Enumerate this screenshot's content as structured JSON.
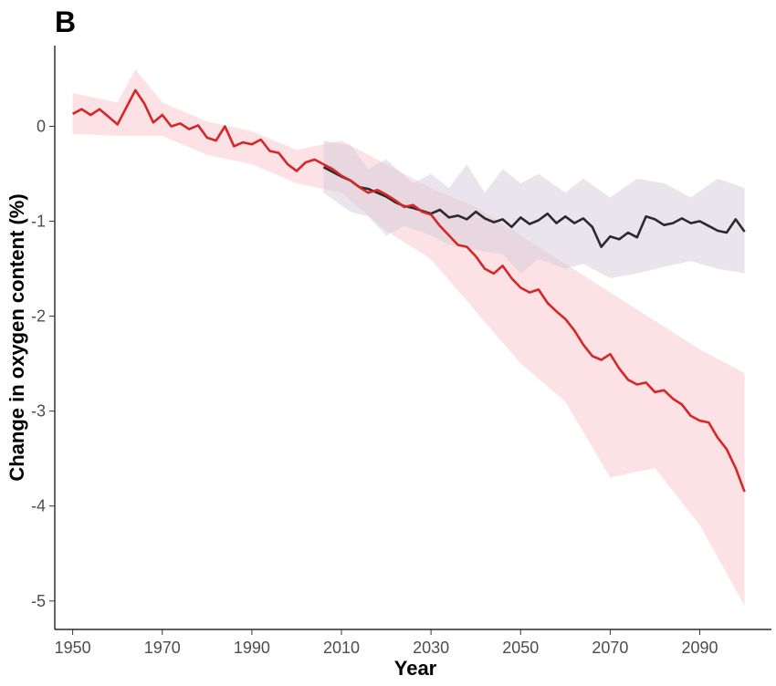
{
  "panel_label": "B",
  "chart_data": {
    "type": "line",
    "title": "",
    "xlabel": "Year",
    "ylabel": "Change in oxygen content (%)",
    "xlim": [
      1946,
      2106
    ],
    "ylim": [
      -5.3,
      0.85
    ],
    "xticks": [
      1950,
      1970,
      1990,
      2010,
      2030,
      2050,
      2070,
      2090
    ],
    "yticks": [
      0,
      -1,
      -2,
      -3,
      -4,
      -5
    ],
    "grid": false,
    "legend": "none",
    "series": [
      {
        "color": "#d62728",
        "band_color": "#f9c8cf",
        "points": [
          [
            1950,
            0.13
          ],
          [
            1952,
            0.18
          ],
          [
            1954,
            0.12
          ],
          [
            1956,
            0.18
          ],
          [
            1958,
            0.1
          ],
          [
            1960,
            0.02
          ],
          [
            1962,
            0.2
          ],
          [
            1964,
            0.38
          ],
          [
            1966,
            0.24
          ],
          [
            1968,
            0.04
          ],
          [
            1970,
            0.12
          ],
          [
            1972,
            0.0
          ],
          [
            1974,
            0.03
          ],
          [
            1976,
            -0.03
          ],
          [
            1978,
            0.01
          ],
          [
            1980,
            -0.12
          ],
          [
            1982,
            -0.15
          ],
          [
            1984,
            0.0
          ],
          [
            1986,
            -0.21
          ],
          [
            1988,
            -0.17
          ],
          [
            1990,
            -0.19
          ],
          [
            1992,
            -0.14
          ],
          [
            1994,
            -0.26
          ],
          [
            1996,
            -0.28
          ],
          [
            1998,
            -0.4
          ],
          [
            2000,
            -0.47
          ],
          [
            2002,
            -0.38
          ],
          [
            2004,
            -0.35
          ],
          [
            2006,
            -0.4
          ],
          [
            2008,
            -0.45
          ],
          [
            2010,
            -0.52
          ],
          [
            2012,
            -0.57
          ],
          [
            2014,
            -0.64
          ],
          [
            2016,
            -0.7
          ],
          [
            2018,
            -0.67
          ],
          [
            2020,
            -0.72
          ],
          [
            2022,
            -0.78
          ],
          [
            2024,
            -0.85
          ],
          [
            2026,
            -0.83
          ],
          [
            2028,
            -0.9
          ],
          [
            2030,
            -0.93
          ],
          [
            2032,
            -1.05
          ],
          [
            2034,
            -1.15
          ],
          [
            2036,
            -1.25
          ],
          [
            2038,
            -1.27
          ],
          [
            2040,
            -1.37
          ],
          [
            2042,
            -1.5
          ],
          [
            2044,
            -1.55
          ],
          [
            2046,
            -1.47
          ],
          [
            2048,
            -1.6
          ],
          [
            2050,
            -1.7
          ],
          [
            2052,
            -1.75
          ],
          [
            2054,
            -1.72
          ],
          [
            2056,
            -1.86
          ],
          [
            2058,
            -1.95
          ],
          [
            2060,
            -2.03
          ],
          [
            2062,
            -2.15
          ],
          [
            2064,
            -2.3
          ],
          [
            2066,
            -2.42
          ],
          [
            2068,
            -2.46
          ],
          [
            2070,
            -2.4
          ],
          [
            2072,
            -2.55
          ],
          [
            2074,
            -2.67
          ],
          [
            2076,
            -2.72
          ],
          [
            2078,
            -2.7
          ],
          [
            2080,
            -2.8
          ],
          [
            2082,
            -2.78
          ],
          [
            2084,
            -2.87
          ],
          [
            2086,
            -2.93
          ],
          [
            2088,
            -3.05
          ],
          [
            2090,
            -3.1
          ],
          [
            2092,
            -3.12
          ],
          [
            2094,
            -3.28
          ],
          [
            2096,
            -3.4
          ],
          [
            2098,
            -3.6
          ],
          [
            2100,
            -3.85
          ]
        ],
        "band_upper": [
          [
            1950,
            0.35
          ],
          [
            1960,
            0.25
          ],
          [
            1964,
            0.6
          ],
          [
            1970,
            0.25
          ],
          [
            1980,
            0.05
          ],
          [
            1990,
            -0.05
          ],
          [
            2000,
            -0.25
          ],
          [
            2010,
            -0.15
          ],
          [
            2020,
            -0.4
          ],
          [
            2030,
            -0.65
          ],
          [
            2040,
            -0.85
          ],
          [
            2050,
            -1.15
          ],
          [
            2060,
            -1.45
          ],
          [
            2070,
            -1.75
          ],
          [
            2080,
            -2.05
          ],
          [
            2090,
            -2.35
          ],
          [
            2100,
            -2.6
          ]
        ],
        "band_lower": [
          [
            2100,
            -5.05
          ],
          [
            2090,
            -4.2
          ],
          [
            2080,
            -3.6
          ],
          [
            2070,
            -3.7
          ],
          [
            2060,
            -2.9
          ],
          [
            2050,
            -2.5
          ],
          [
            2040,
            -1.95
          ],
          [
            2030,
            -1.4
          ],
          [
            2020,
            -1.1
          ],
          [
            2010,
            -0.7
          ],
          [
            2000,
            -0.6
          ],
          [
            1990,
            -0.4
          ],
          [
            1980,
            -0.3
          ],
          [
            1970,
            -0.1
          ],
          [
            1960,
            -0.1
          ],
          [
            1950,
            -0.08
          ]
        ]
      },
      {
        "color": "#2b2b2b",
        "band_color": "#d9cfdc",
        "points": [
          [
            2006,
            -0.43
          ],
          [
            2008,
            -0.48
          ],
          [
            2010,
            -0.53
          ],
          [
            2012,
            -0.57
          ],
          [
            2014,
            -0.64
          ],
          [
            2016,
            -0.66
          ],
          [
            2018,
            -0.7
          ],
          [
            2020,
            -0.74
          ],
          [
            2022,
            -0.8
          ],
          [
            2024,
            -0.84
          ],
          [
            2026,
            -0.86
          ],
          [
            2028,
            -0.89
          ],
          [
            2030,
            -0.92
          ],
          [
            2032,
            -0.88
          ],
          [
            2034,
            -0.96
          ],
          [
            2036,
            -0.94
          ],
          [
            2038,
            -0.98
          ],
          [
            2040,
            -0.9
          ],
          [
            2042,
            -0.97
          ],
          [
            2044,
            -1.01
          ],
          [
            2046,
            -0.98
          ],
          [
            2048,
            -1.06
          ],
          [
            2050,
            -0.96
          ],
          [
            2052,
            -1.03
          ],
          [
            2054,
            -0.99
          ],
          [
            2056,
            -0.92
          ],
          [
            2058,
            -1.02
          ],
          [
            2060,
            -0.95
          ],
          [
            2062,
            -1.02
          ],
          [
            2064,
            -0.97
          ],
          [
            2066,
            -1.06
          ],
          [
            2068,
            -1.27
          ],
          [
            2070,
            -1.16
          ],
          [
            2072,
            -1.19
          ],
          [
            2074,
            -1.12
          ],
          [
            2076,
            -1.17
          ],
          [
            2078,
            -0.95
          ],
          [
            2080,
            -0.98
          ],
          [
            2082,
            -1.04
          ],
          [
            2084,
            -1.02
          ],
          [
            2086,
            -0.97
          ],
          [
            2088,
            -1.02
          ],
          [
            2090,
            -1.0
          ],
          [
            2092,
            -1.05
          ],
          [
            2094,
            -1.1
          ],
          [
            2096,
            -1.12
          ],
          [
            2098,
            -0.98
          ],
          [
            2100,
            -1.11
          ]
        ],
        "band_upper": [
          [
            2006,
            -0.15
          ],
          [
            2012,
            -0.2
          ],
          [
            2016,
            -0.45
          ],
          [
            2020,
            -0.35
          ],
          [
            2026,
            -0.6
          ],
          [
            2030,
            -0.5
          ],
          [
            2034,
            -0.65
          ],
          [
            2038,
            -0.4
          ],
          [
            2042,
            -0.7
          ],
          [
            2046,
            -0.45
          ],
          [
            2050,
            -0.6
          ],
          [
            2054,
            -0.5
          ],
          [
            2060,
            -0.7
          ],
          [
            2064,
            -0.55
          ],
          [
            2070,
            -0.75
          ],
          [
            2076,
            -0.55
          ],
          [
            2082,
            -0.6
          ],
          [
            2088,
            -0.75
          ],
          [
            2094,
            -0.55
          ],
          [
            2100,
            -0.65
          ]
        ],
        "band_lower": [
          [
            2100,
            -1.55
          ],
          [
            2094,
            -1.5
          ],
          [
            2088,
            -1.42
          ],
          [
            2082,
            -1.48
          ],
          [
            2076,
            -1.55
          ],
          [
            2070,
            -1.6
          ],
          [
            2064,
            -1.45
          ],
          [
            2060,
            -1.5
          ],
          [
            2054,
            -1.4
          ],
          [
            2050,
            -1.55
          ],
          [
            2046,
            -1.35
          ],
          [
            2040,
            -1.3
          ],
          [
            2034,
            -1.25
          ],
          [
            2030,
            -1.15
          ],
          [
            2024,
            -1.05
          ],
          [
            2020,
            -1.15
          ],
          [
            2016,
            -0.95
          ],
          [
            2012,
            -0.9
          ],
          [
            2006,
            -0.7
          ]
        ]
      }
    ]
  }
}
